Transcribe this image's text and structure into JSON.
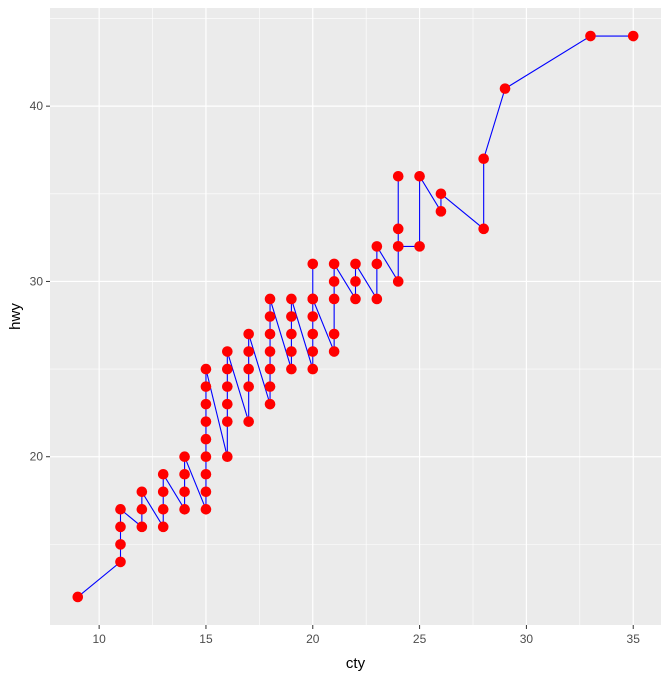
{
  "chart_data": {
    "type": "scatter",
    "title": "",
    "xlabel": "cty",
    "ylabel": "hwy",
    "xlim": [
      7.7,
      36.3
    ],
    "ylim": [
      10.4,
      45.6
    ],
    "x_ticks": [
      10,
      15,
      20,
      25,
      30,
      35
    ],
    "y_ticks": [
      20,
      30,
      40
    ],
    "x_tick_labels": [
      "10",
      "15",
      "20",
      "25",
      "30",
      "35"
    ],
    "y_tick_labels": [
      "20",
      "30",
      "40"
    ],
    "grid": true,
    "legend": "none",
    "colors": {
      "panel_background": "#ebebeb",
      "grid": "#ffffff",
      "points": "#ff0000",
      "line": "#0000ff"
    },
    "series": [
      {
        "x": [
          9,
          11,
          11,
          11,
          11,
          12,
          12,
          12,
          13,
          13,
          13,
          13,
          14,
          14,
          14,
          14,
          15,
          15,
          15,
          15,
          15,
          15,
          15,
          15,
          15,
          16,
          16,
          16,
          16,
          16,
          16,
          17,
          17,
          17,
          17,
          17,
          18,
          18,
          18,
          18,
          18,
          18,
          18,
          19,
          19,
          19,
          19,
          19,
          20,
          20,
          20,
          20,
          20,
          20,
          20,
          21,
          21,
          21,
          21,
          21,
          22,
          22,
          22,
          23,
          23,
          23,
          24,
          24,
          24,
          24,
          24,
          25,
          25,
          26,
          26,
          28,
          28,
          29,
          33,
          35
        ],
        "y": [
          12,
          14,
          15,
          16,
          17,
          16,
          17,
          18,
          16,
          17,
          18,
          19,
          17,
          18,
          19,
          20,
          17,
          18,
          19,
          20,
          21,
          22,
          23,
          24,
          25,
          20,
          22,
          23,
          24,
          25,
          26,
          22,
          24,
          25,
          26,
          27,
          23,
          24,
          25,
          26,
          27,
          28,
          29,
          25,
          26,
          27,
          28,
          29,
          25,
          26,
          27,
          28,
          29,
          31,
          29,
          26,
          27,
          29,
          30,
          31,
          29,
          30,
          31,
          29,
          31,
          32,
          30,
          32,
          33,
          36,
          32,
          32,
          36,
          34,
          35,
          33,
          37,
          41,
          44,
          44
        ]
      }
    ]
  }
}
